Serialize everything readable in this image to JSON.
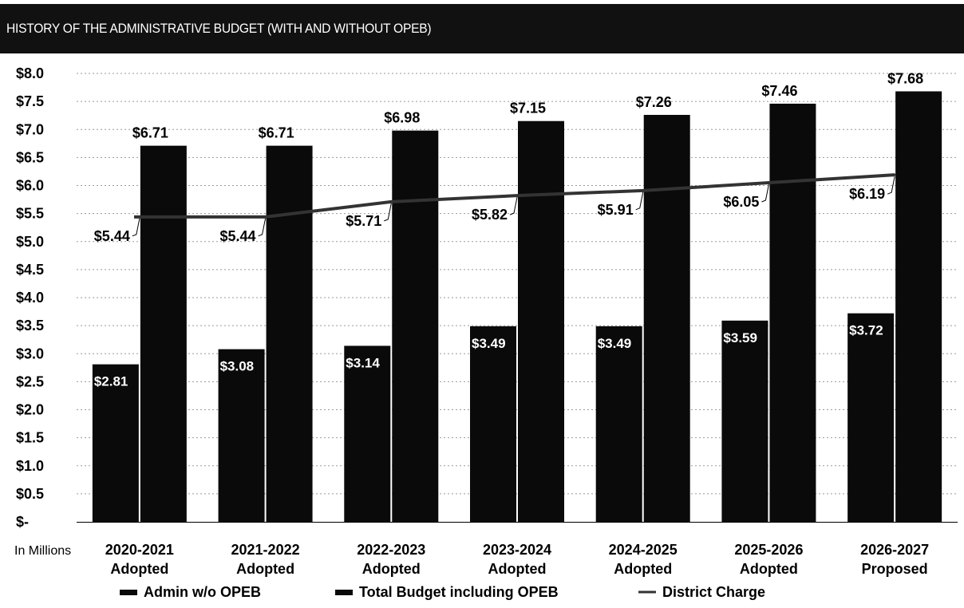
{
  "chart_data": {
    "type": "bar",
    "title": "HISTORY OF THE ADMINISTRATIVE BUDGET (WITH AND WITHOUT OPEB)",
    "unit_label": "In Millions",
    "categories": [
      [
        "2020-2021",
        "Adopted"
      ],
      [
        "2021-2022",
        "Adopted"
      ],
      [
        "2022-2023",
        "Adopted"
      ],
      [
        "2023-2024",
        "Adopted"
      ],
      [
        "2024-2025",
        "Adopted"
      ],
      [
        "2025-2026",
        "Adopted"
      ],
      [
        "2026-2027",
        "Proposed"
      ]
    ],
    "ylim": [
      0,
      8
    ],
    "y_ticks": [
      {
        "value": 0,
        "label": "$-"
      },
      {
        "value": 0.5,
        "label": "$0.5"
      },
      {
        "value": 1.0,
        "label": "$1.0"
      },
      {
        "value": 1.5,
        "label": "$1.5"
      },
      {
        "value": 2.0,
        "label": "$2.0"
      },
      {
        "value": 2.5,
        "label": "$2.5"
      },
      {
        "value": 3.0,
        "label": "$3.0"
      },
      {
        "value": 3.5,
        "label": "$3.5"
      },
      {
        "value": 4.0,
        "label": "$4.0"
      },
      {
        "value": 4.5,
        "label": "$4.5"
      },
      {
        "value": 5.0,
        "label": "$5.0"
      },
      {
        "value": 5.5,
        "label": "$5.5"
      },
      {
        "value": 6.0,
        "label": "$6.0"
      },
      {
        "value": 6.5,
        "label": "$6.5"
      },
      {
        "value": 7.0,
        "label": "$7.0"
      },
      {
        "value": 7.5,
        "label": "$7.5"
      },
      {
        "value": 8.0,
        "label": "$8.0"
      }
    ],
    "grid": true,
    "legend_position": "bottom",
    "series": [
      {
        "name": "Admin w/o OPEB",
        "type": "bar",
        "color": "#0a0a0a",
        "values": [
          2.81,
          3.08,
          3.14,
          3.49,
          3.49,
          3.59,
          3.72
        ],
        "labels": [
          "$2.81",
          "$3.08",
          "$3.14",
          "$3.49",
          "$3.49",
          "$3.59",
          "$3.72"
        ]
      },
      {
        "name": "Total Budget including OPEB",
        "type": "bar",
        "color": "#0a0a0a",
        "values": [
          6.71,
          6.71,
          6.98,
          7.15,
          7.26,
          7.46,
          7.68
        ],
        "labels": [
          "$6.71",
          "$6.71",
          "$6.98",
          "$7.15",
          "$7.26",
          "$7.46",
          "$7.68"
        ]
      },
      {
        "name": "District Charge",
        "type": "line",
        "color": "#333333",
        "values": [
          5.44,
          5.44,
          5.71,
          5.82,
          5.91,
          6.05,
          6.19
        ],
        "labels": [
          "$5.44",
          "$5.44",
          "$5.71",
          "$5.82",
          "$5.91",
          "$6.05",
          "$6.19"
        ]
      }
    ]
  }
}
